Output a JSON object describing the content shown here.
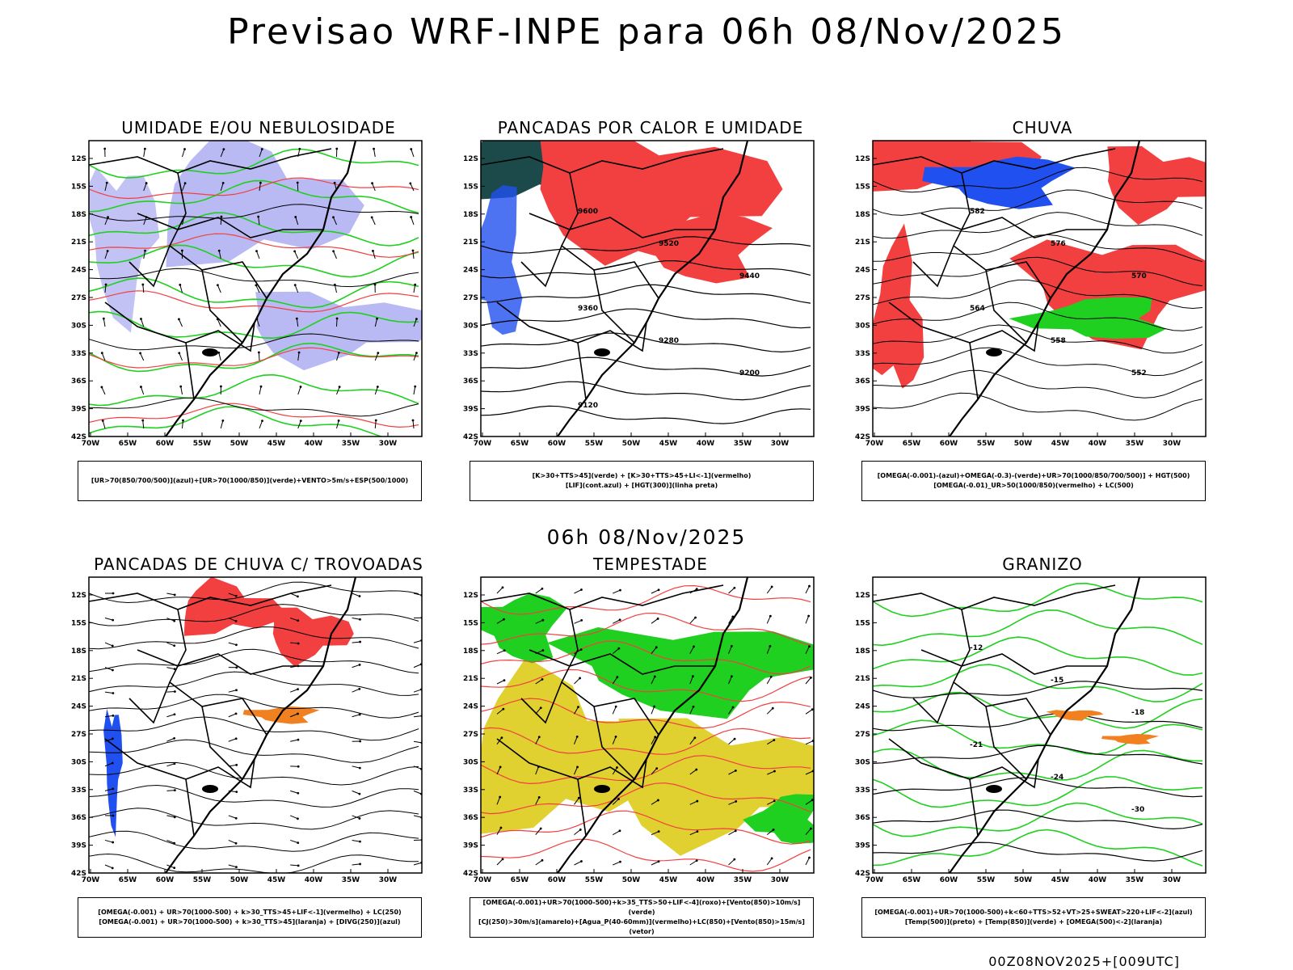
{
  "main_title": "Previsao WRF-INPE  para 06h 08/Nov/2025",
  "mid_title": "06h 08/Nov/2025",
  "footer": "00Z08NOV2025+[009UTC]",
  "axes": {
    "lat_labels": [
      "12S",
      "15S",
      "18S",
      "21S",
      "24S",
      "27S",
      "30S",
      "33S",
      "36S",
      "39S",
      "42S"
    ],
    "lon_labels": [
      "70W",
      "65W",
      "60W",
      "55W",
      "50W",
      "45W",
      "40W",
      "35W",
      "30W"
    ]
  },
  "colors": {
    "red": "#f24040",
    "blue": "#2050f0",
    "green": "#20d020",
    "lavender": "#a8a8f0",
    "darkteal": "#1c4a4a",
    "yellow": "#e0d030",
    "orange": "#f08020"
  },
  "panels": [
    {
      "id": "umidade",
      "title": "UMIDADE E/OU NEBULOSIDADE",
      "legend": [
        "[UR>70(850/700/500)](azul)+[UR>70(1000/850)](verde)+VENTO>5m/s+ESP(500/1000)"
      ]
    },
    {
      "id": "pancadas-calor",
      "title": "PANCADAS POR CALOR E UMIDADE",
      "legend": [
        "[K>30+TTS>45](verde) + [K>30+TTS>45+LI<-1](vermelho)",
        "[LIF](cont.azul) + [HGT(300)](linha preta)"
      ],
      "contour_labels": [
        "9600",
        "9520",
        "9440",
        "9360",
        "9280",
        "9200",
        "9120"
      ]
    },
    {
      "id": "chuva",
      "title": "CHUVA",
      "legend": [
        "[OMEGA(-0.001)-(azul)+OMEGA(-0.3)-(verde)+UR>70(1000/850/700/500)] + HGT(500)",
        "[OMEGA(-0.01)_UR>50(1000/850)(vermelho) + LC(500)"
      ],
      "contour_labels": [
        "582",
        "576",
        "570",
        "564",
        "558",
        "552"
      ]
    },
    {
      "id": "trovoadas",
      "title": "PANCADAS DE CHUVA C/ TROVOADAS",
      "legend": [
        "[OMEGA(-0.001) + UR>70(1000-500) + k>30_TTS>45+LIF<-1](vermelho) + LC(250)",
        "[OMEGA(-0.001) + UR>70(1000-500) + k>30_TTS>45](laranja) + [DIVG(250)](azul)"
      ]
    },
    {
      "id": "tempestade",
      "title": "TEMPESTADE",
      "legend": [
        "[OMEGA(-0.001)+UR>70(1000-500)+k>35_TTS>50+LIF<-4](roxo)+[Vento(850)>10m/s](verde)",
        "[CJ(250)>30m/s](amarelo)+[Agua_P(40-60mm)](vermelho)+LC(850)+[Vento(850)>15m/s](vetor)"
      ]
    },
    {
      "id": "granizo",
      "title": "GRANIZO",
      "legend": [
        "[OMEGA(-0.001)+UR>70(1000-500)+k<60+TTS>52+VT>25+SWEAT>220+LIF<-2](azul)",
        "[Temp(500)](preto) + [Temp(850)](verde) + [OMEGA(500)<-2](laranja)"
      ],
      "contour_labels": [
        "-12",
        "-15",
        "-18",
        "-21",
        "-24",
        "-30"
      ]
    }
  ]
}
